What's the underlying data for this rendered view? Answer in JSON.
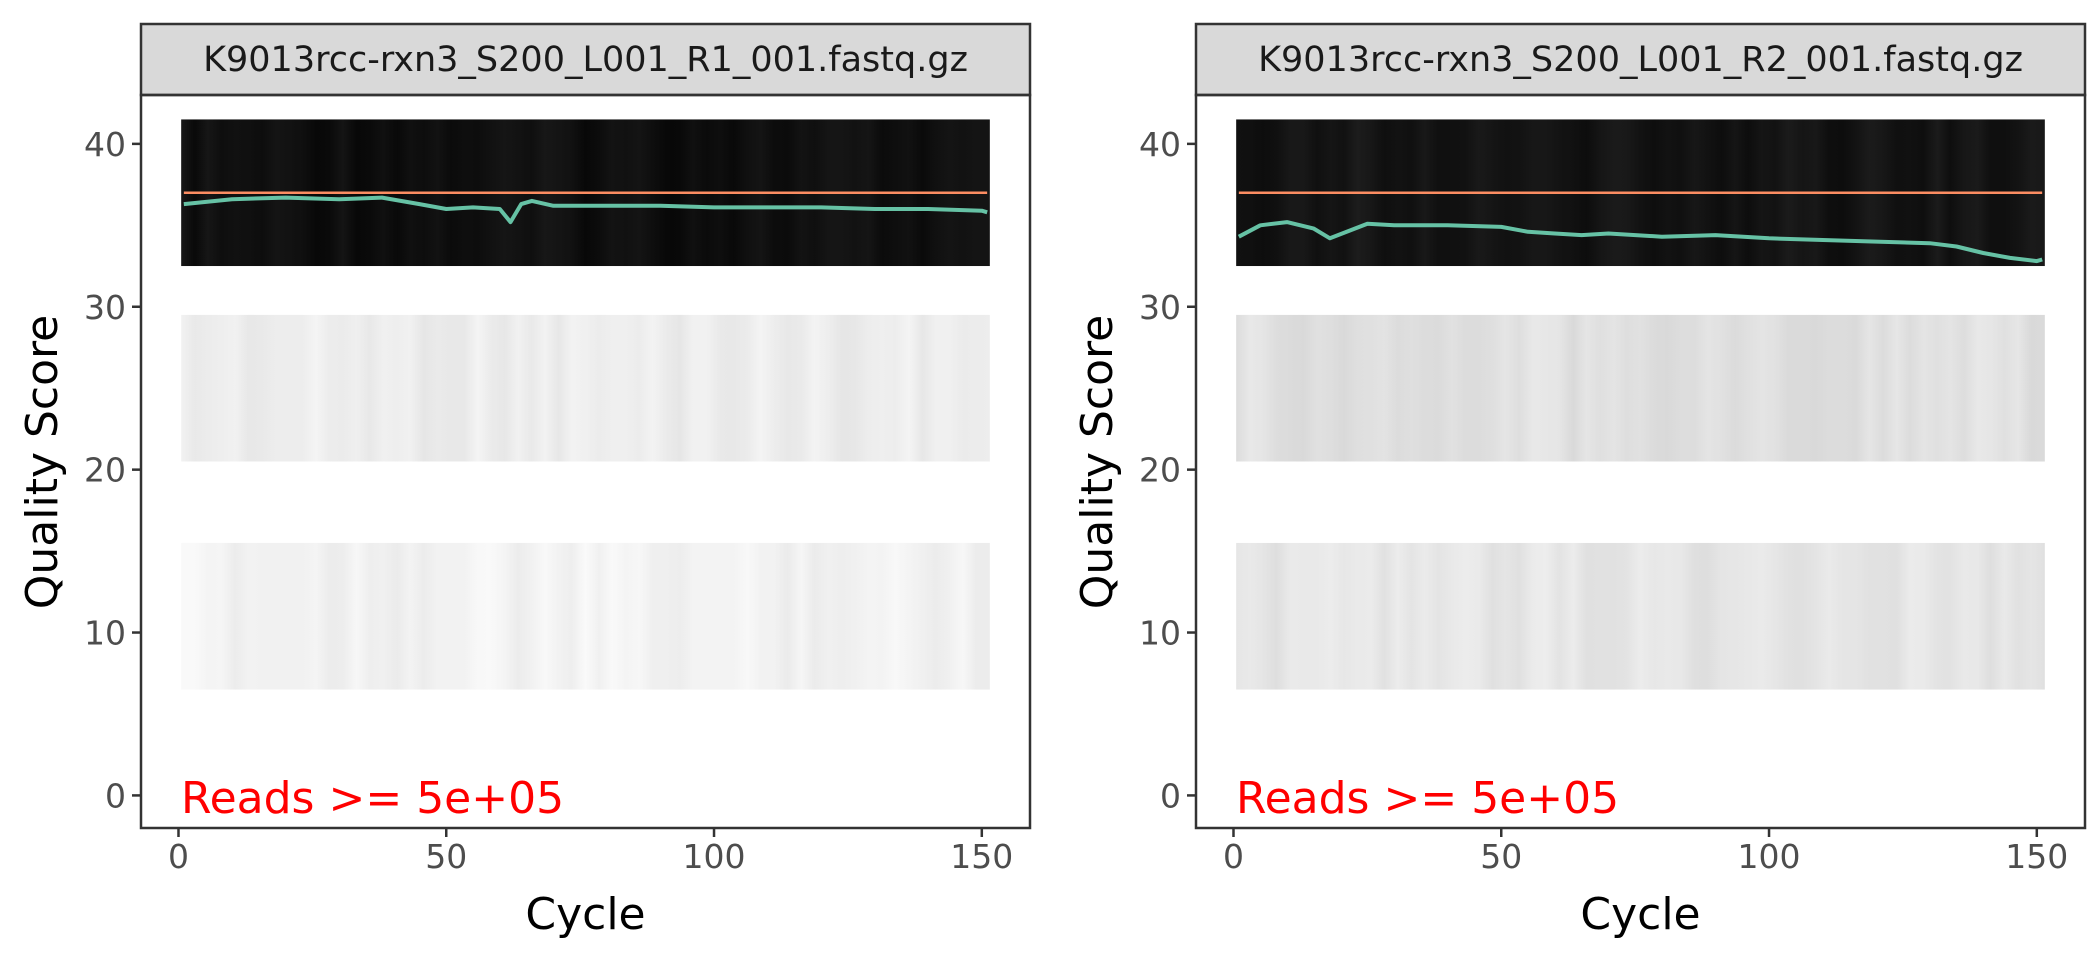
{
  "colors": {
    "mean_line": "#66C2A5",
    "reference_line": "#FC8D62",
    "reads_annotation": "#FF0000",
    "strip_background": "#D9D9D9",
    "panel_border": "#333333",
    "tick_text": "#4D4D4D"
  },
  "chart_data": [
    {
      "type": "heatmap",
      "title": "K9013rcc-rxn3_S200_L001_R1_001.fastq.gz",
      "xlabel": "Cycle",
      "ylabel": "Quality Score",
      "xlim": [
        -7,
        159
      ],
      "ylim": [
        -2,
        43
      ],
      "xticks": [
        "0",
        "50",
        "100",
        "150"
      ],
      "yticks": [
        "0",
        "10",
        "20",
        "30",
        "40"
      ],
      "grid": false,
      "annotation": "Reads >=  5e+05",
      "reference_line_y": 37,
      "heat_bands": [
        {
          "quality_range": [
            32.5,
            41.5
          ],
          "darkness": 0.94
        },
        {
          "quality_range": [
            20.5,
            29.5
          ],
          "darkness": 0.07
        },
        {
          "quality_range": [
            6.5,
            15.5
          ],
          "darkness": 0.05
        }
      ],
      "mean_quality": {
        "cycles": [
          1,
          10,
          20,
          30,
          38,
          45,
          50,
          55,
          60,
          62,
          64,
          66,
          70,
          80,
          90,
          100,
          110,
          120,
          130,
          140,
          150,
          151
        ],
        "values": [
          36.3,
          36.6,
          36.7,
          36.6,
          36.7,
          36.3,
          36.0,
          36.1,
          36.0,
          35.2,
          36.3,
          36.5,
          36.2,
          36.2,
          36.2,
          36.1,
          36.1,
          36.1,
          36.0,
          36.0,
          35.9,
          35.8
        ]
      }
    },
    {
      "type": "heatmap",
      "title": "K9013rcc-rxn3_S200_L001_R2_001.fastq.gz",
      "xlabel": "Cycle",
      "ylabel": "Quality Score",
      "xlim": [
        -7,
        159
      ],
      "ylim": [
        -2,
        43
      ],
      "xticks": [
        "0",
        "50",
        "100",
        "150"
      ],
      "yticks": [
        "0",
        "10",
        "20",
        "30",
        "40"
      ],
      "grid": false,
      "annotation": "Reads >=  5e+05",
      "reference_line_y": 37,
      "heat_bands": [
        {
          "quality_range": [
            32.5,
            41.5
          ],
          "darkness": 0.92
        },
        {
          "quality_range": [
            20.5,
            29.5
          ],
          "darkness": 0.12
        },
        {
          "quality_range": [
            6.5,
            15.5
          ],
          "darkness": 0.1
        }
      ],
      "mean_quality": {
        "cycles": [
          1,
          5,
          10,
          15,
          18,
          25,
          30,
          40,
          50,
          55,
          60,
          65,
          70,
          80,
          90,
          100,
          110,
          120,
          130,
          135,
          140,
          145,
          150,
          151
        ],
        "values": [
          34.3,
          35.0,
          35.2,
          34.8,
          34.2,
          35.1,
          35.0,
          35.0,
          34.9,
          34.6,
          34.5,
          34.4,
          34.5,
          34.3,
          34.4,
          34.2,
          34.1,
          34.0,
          33.9,
          33.7,
          33.3,
          33.0,
          32.8,
          32.9
        ]
      }
    }
  ]
}
